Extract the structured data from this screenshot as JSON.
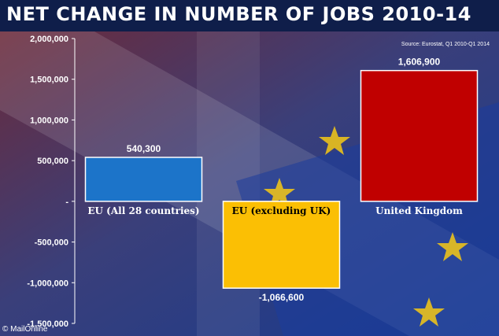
{
  "title": "NET CHANGE IN NUMBER OF JOBS 2010-14",
  "source": "Source: Eurostat, Q1 2010-Q1 2014",
  "credit": "© MailOnline",
  "colors": {
    "blue": "#1c74c9",
    "gold": "#fbbf04",
    "red": "#c00000",
    "background": "#1a2d6e"
  },
  "chart_data": {
    "type": "bar",
    "title": "NET CHANGE IN NUMBER OF JOBS 2010-14",
    "categories": [
      "EU (All 28 countries)",
      "EU (excluding UK)",
      "United Kingdom"
    ],
    "values": [
      540300,
      -1066600,
      1606900
    ],
    "value_labels": [
      "540,300",
      "-1,066,600",
      "1,606,900"
    ],
    "bar_colors": [
      "#1c74c9",
      "#fbbf04",
      "#c00000"
    ],
    "ylim": [
      -1500000,
      2000000
    ],
    "yticks": [
      2000000,
      1500000,
      1000000,
      500000,
      0,
      -500000,
      -1000000,
      -1500000
    ],
    "ytick_labels": [
      "2,000,000",
      "1,500,000",
      "1,000,000",
      "500,000",
      "-",
      "-500,000",
      "-1,000,000",
      "-1,500,000"
    ],
    "grid": false
  }
}
